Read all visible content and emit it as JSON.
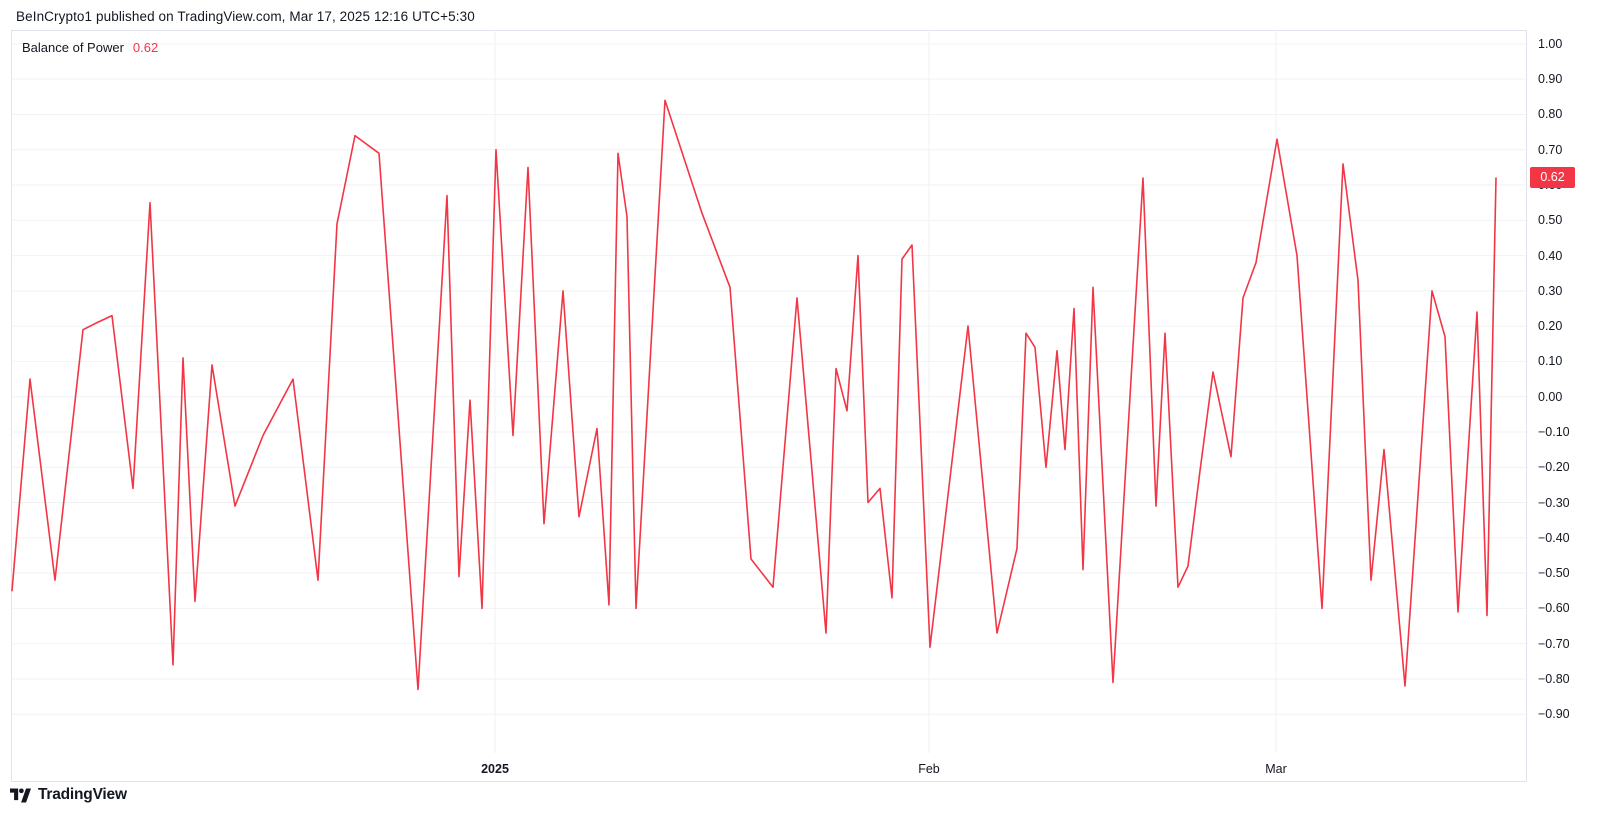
{
  "header": {
    "attribution": "BeInCrypto1 published on TradingView.com, Mar 17, 2025 12:16 UTC+5:30"
  },
  "legend": {
    "indicator": "Balance of Power",
    "value": "0.62"
  },
  "price_scale": {
    "labels": [
      "1.00",
      "0.90",
      "0.80",
      "0.70",
      "0.60",
      "0.50",
      "0.40",
      "0.30",
      "0.20",
      "0.10",
      "0.00",
      "−0.10",
      "−0.20",
      "−0.30",
      "−0.40",
      "−0.50",
      "−0.60",
      "−0.70",
      "−0.80",
      "−0.90"
    ],
    "badge": {
      "value": "0.62"
    }
  },
  "time_scale": {
    "ticks": [
      {
        "label": "2025",
        "x": 495,
        "bold": true
      },
      {
        "label": "Feb",
        "x": 929,
        "bold": false
      },
      {
        "label": "Mar",
        "x": 1276,
        "bold": false
      }
    ]
  },
  "footer": {
    "brand": "TradingView"
  },
  "colors": {
    "line_red": "#f23645",
    "badge_bg": "#f23645",
    "badge_text": "#ffffff",
    "text": "#131722",
    "grid": "#f0f2f5",
    "border": "#e0e3eb",
    "background": "#ffffff"
  },
  "chart_data": {
    "type": "line",
    "title": "Balance of Power",
    "series_name": "Balance of Power",
    "current_value": 0.62,
    "ylim": [
      -0.9,
      1.0
    ],
    "y_tick_step": 0.1,
    "x_axis_tick_labels": [
      "2025",
      "Feb",
      "Mar"
    ],
    "grid": true,
    "legend_position": "top-left",
    "points_format": "[x_pixel, indicator_value]",
    "points": [
      [
        12,
        -0.55
      ],
      [
        30,
        0.05
      ],
      [
        55,
        -0.52
      ],
      [
        83,
        0.19
      ],
      [
        97,
        0.21
      ],
      [
        112,
        0.23
      ],
      [
        133,
        -0.26
      ],
      [
        150,
        0.55
      ],
      [
        173,
        -0.76
      ],
      [
        183,
        0.11
      ],
      [
        195,
        -0.58
      ],
      [
        212,
        0.09
      ],
      [
        235,
        -0.31
      ],
      [
        263,
        -0.11
      ],
      [
        293,
        0.05
      ],
      [
        318,
        -0.52
      ],
      [
        337,
        0.49
      ],
      [
        355,
        0.74
      ],
      [
        379,
        0.69
      ],
      [
        418,
        -0.83
      ],
      [
        447,
        0.57
      ],
      [
        459,
        -0.51
      ],
      [
        470,
        -0.01
      ],
      [
        482,
        -0.6
      ],
      [
        496,
        0.7
      ],
      [
        513,
        -0.11
      ],
      [
        528,
        0.65
      ],
      [
        544,
        -0.36
      ],
      [
        563,
        0.3
      ],
      [
        579,
        -0.34
      ],
      [
        597,
        -0.09
      ],
      [
        609,
        -0.59
      ],
      [
        618,
        0.69
      ],
      [
        627,
        0.51
      ],
      [
        636,
        -0.6
      ],
      [
        665,
        0.84
      ],
      [
        702,
        0.52
      ],
      [
        730,
        0.31
      ],
      [
        751,
        -0.46
      ],
      [
        773,
        -0.54
      ],
      [
        797,
        0.28
      ],
      [
        826,
        -0.67
      ],
      [
        836,
        0.08
      ],
      [
        847,
        -0.04
      ],
      [
        858,
        0.4
      ],
      [
        868,
        -0.3
      ],
      [
        880,
        -0.26
      ],
      [
        892,
        -0.57
      ],
      [
        902,
        0.39
      ],
      [
        912,
        0.43
      ],
      [
        930,
        -0.71
      ],
      [
        968,
        0.2
      ],
      [
        997,
        -0.67
      ],
      [
        1017,
        -0.43
      ],
      [
        1026,
        0.18
      ],
      [
        1035,
        0.14
      ],
      [
        1046,
        -0.2
      ],
      [
        1057,
        0.13
      ],
      [
        1065,
        -0.15
      ],
      [
        1074,
        0.25
      ],
      [
        1083,
        -0.49
      ],
      [
        1093,
        0.31
      ],
      [
        1113,
        -0.81
      ],
      [
        1143,
        0.62
      ],
      [
        1156,
        -0.31
      ],
      [
        1165,
        0.18
      ],
      [
        1178,
        -0.54
      ],
      [
        1188,
        -0.48
      ],
      [
        1200,
        -0.21
      ],
      [
        1213,
        0.07
      ],
      [
        1231,
        -0.17
      ],
      [
        1243,
        0.28
      ],
      [
        1256,
        0.38
      ],
      [
        1277,
        0.73
      ],
      [
        1297,
        0.4
      ],
      [
        1322,
        -0.6
      ],
      [
        1343,
        0.66
      ],
      [
        1358,
        0.33
      ],
      [
        1371,
        -0.52
      ],
      [
        1384,
        -0.15
      ],
      [
        1405,
        -0.82
      ],
      [
        1432,
        0.3
      ],
      [
        1445,
        0.17
      ],
      [
        1458,
        -0.61
      ],
      [
        1477,
        0.24
      ],
      [
        1487,
        -0.62
      ],
      [
        1496,
        0.62
      ]
    ]
  }
}
